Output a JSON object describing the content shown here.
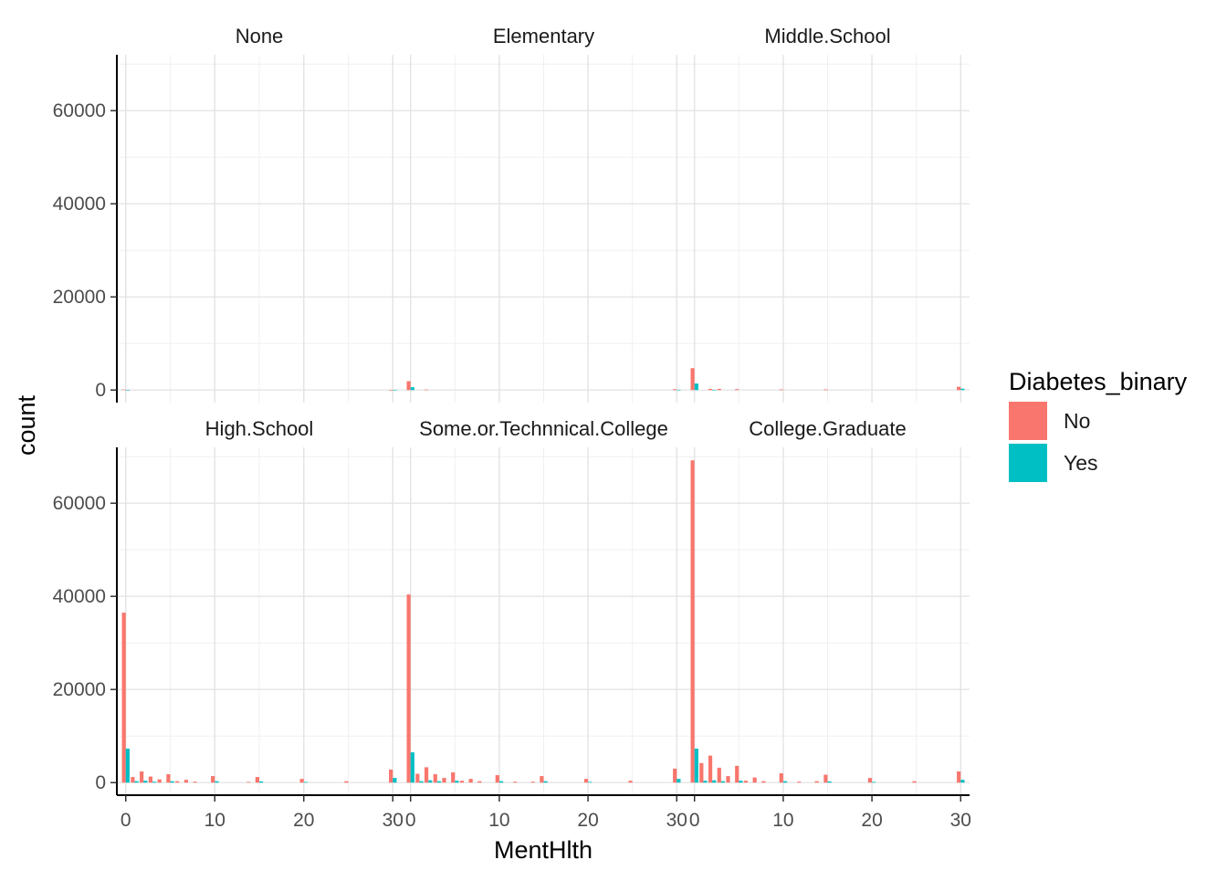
{
  "chart_data": {
    "type": "bar",
    "xlabel": "MentHlth",
    "ylabel": "count",
    "ylim": [
      0,
      72000
    ],
    "xlim": [
      0,
      30
    ],
    "y_ticks": [
      0,
      20000,
      40000,
      60000
    ],
    "y_tick_labels": [
      "0",
      "20000",
      "40000",
      "60000"
    ],
    "x_ticks": [
      0,
      10,
      20,
      30
    ],
    "x_tick_labels": [
      "0",
      "10",
      "20",
      "30"
    ],
    "grid": true,
    "legend": {
      "title": "Diabetes_binary",
      "position": "right",
      "entries": [
        {
          "name": "No",
          "color": "#F8766D"
        },
        {
          "name": "Yes",
          "color": "#00BFC4"
        }
      ]
    },
    "facets": [
      {
        "label": "None",
        "series": [
          {
            "name": "No",
            "points": [
              [
                0,
                120
              ],
              [
                30,
                20
              ]
            ]
          },
          {
            "name": "Yes",
            "points": [
              [
                0,
                40
              ],
              [
                30,
                10
              ]
            ]
          }
        ]
      },
      {
        "label": "Elementary",
        "series": [
          {
            "name": "No",
            "points": [
              [
                0,
                1900
              ],
              [
                2,
                100
              ],
              [
                30,
                200
              ]
            ]
          },
          {
            "name": "Yes",
            "points": [
              [
                0,
                600
              ],
              [
                30,
                60
              ]
            ]
          }
        ]
      },
      {
        "label": "Middle.School",
        "series": [
          {
            "name": "No",
            "points": [
              [
                0,
                4700
              ],
              [
                2,
                250
              ],
              [
                3,
                250
              ],
              [
                5,
                200
              ],
              [
                10,
                150
              ],
              [
                15,
                150
              ],
              [
                30,
                700
              ]
            ]
          },
          {
            "name": "Yes",
            "points": [
              [
                0,
                1400
              ],
              [
                2,
                60
              ],
              [
                30,
                300
              ]
            ]
          }
        ]
      },
      {
        "label": "High.School",
        "series": [
          {
            "name": "No",
            "points": [
              [
                0,
                36500
              ],
              [
                1,
                1200
              ],
              [
                2,
                2400
              ],
              [
                3,
                1300
              ],
              [
                4,
                700
              ],
              [
                5,
                1800
              ],
              [
                6,
                300
              ],
              [
                7,
                600
              ],
              [
                8,
                200
              ],
              [
                10,
                1400
              ],
              [
                14,
                150
              ],
              [
                15,
                1200
              ],
              [
                20,
                800
              ],
              [
                25,
                300
              ],
              [
                30,
                2800
              ]
            ]
          },
          {
            "name": "Yes",
            "points": [
              [
                0,
                7300
              ],
              [
                1,
                300
              ],
              [
                2,
                400
              ],
              [
                3,
                200
              ],
              [
                5,
                300
              ],
              [
                10,
                300
              ],
              [
                15,
                250
              ],
              [
                20,
                150
              ],
              [
                30,
                1000
              ]
            ]
          }
        ]
      },
      {
        "label": "Some.or.Technnical.College",
        "series": [
          {
            "name": "No",
            "points": [
              [
                0,
                40400
              ],
              [
                1,
                1900
              ],
              [
                2,
                3300
              ],
              [
                3,
                1800
              ],
              [
                4,
                1000
              ],
              [
                5,
                2200
              ],
              [
                6,
                400
              ],
              [
                7,
                800
              ],
              [
                8,
                300
              ],
              [
                10,
                1600
              ],
              [
                12,
                200
              ],
              [
                14,
                200
              ],
              [
                15,
                1400
              ],
              [
                20,
                800
              ],
              [
                25,
                400
              ],
              [
                30,
                3000
              ]
            ]
          },
          {
            "name": "Yes",
            "points": [
              [
                0,
                6500
              ],
              [
                1,
                300
              ],
              [
                2,
                500
              ],
              [
                3,
                300
              ],
              [
                5,
                400
              ],
              [
                10,
                300
              ],
              [
                15,
                300
              ],
              [
                20,
                150
              ],
              [
                30,
                800
              ]
            ]
          }
        ]
      },
      {
        "label": "College.Graduate",
        "series": [
          {
            "name": "No",
            "points": [
              [
                0,
                69200
              ],
              [
                1,
                4200
              ],
              [
                2,
                5800
              ],
              [
                3,
                3200
              ],
              [
                4,
                1400
              ],
              [
                5,
                3600
              ],
              [
                6,
                400
              ],
              [
                7,
                1100
              ],
              [
                8,
                300
              ],
              [
                10,
                2000
              ],
              [
                12,
                200
              ],
              [
                14,
                300
              ],
              [
                15,
                1700
              ],
              [
                20,
                1000
              ],
              [
                25,
                300
              ],
              [
                30,
                2400
              ]
            ]
          },
          {
            "name": "Yes",
            "points": [
              [
                0,
                7300
              ],
              [
                1,
                400
              ],
              [
                2,
                500
              ],
              [
                3,
                300
              ],
              [
                5,
                400
              ],
              [
                10,
                300
              ],
              [
                15,
                250
              ],
              [
                20,
                150
              ],
              [
                30,
                600
              ]
            ]
          }
        ]
      }
    ]
  }
}
